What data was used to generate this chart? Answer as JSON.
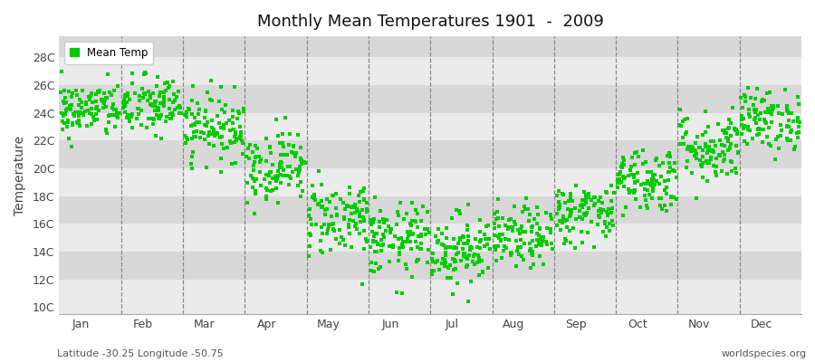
{
  "title": "Monthly Mean Temperatures 1901  -  2009",
  "ylabel": "Temperature",
  "subtitle_left": "Latitude -30.25 Longitude -50.75",
  "subtitle_right": "worldspecies.org",
  "legend_label": "Mean Temp",
  "dot_color": "#00cc00",
  "dot_size": 6,
  "bg_color": "#ffffff",
  "plot_bg_light": "#ebebeb",
  "plot_bg_dark": "#d8d8d8",
  "ytick_labels": [
    "10C",
    "12C",
    "14C",
    "16C",
    "18C",
    "20C",
    "22C",
    "24C",
    "26C",
    "28C"
  ],
  "ytick_values": [
    10,
    12,
    14,
    16,
    18,
    20,
    22,
    24,
    26,
    28
  ],
  "ylim": [
    9.5,
    29.5
  ],
  "months": [
    "Jan",
    "Feb",
    "Mar",
    "Apr",
    "May",
    "Jun",
    "Jul",
    "Aug",
    "Sep",
    "Oct",
    "Nov",
    "Dec"
  ],
  "n_months": 12,
  "xlim": [
    0,
    12
  ],
  "monthly_mean_temps": [
    24.2,
    24.5,
    23.0,
    20.2,
    16.5,
    14.8,
    14.2,
    15.0,
    16.8,
    19.2,
    21.5,
    23.5
  ],
  "monthly_std": [
    1.0,
    1.1,
    1.2,
    1.3,
    1.4,
    1.3,
    1.3,
    1.1,
    1.1,
    1.2,
    1.3,
    1.1
  ],
  "n_years": 109,
  "seed": 42
}
